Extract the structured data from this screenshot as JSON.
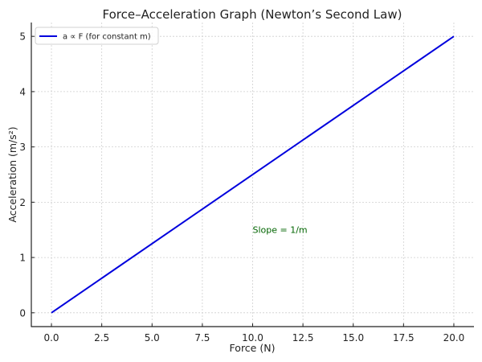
{
  "chart_data": {
    "type": "line",
    "title": "Force–Acceleration Graph (Newton’s Second Law)",
    "xlabel": "Force (N)",
    "ylabel": "Acceleration (m/s²)",
    "xlim": [
      -1,
      21
    ],
    "ylim": [
      -0.25,
      5.25
    ],
    "x_ticks": [
      0.0,
      2.5,
      5.0,
      7.5,
      10.0,
      12.5,
      15.0,
      17.5,
      20.0
    ],
    "x_tick_labels": [
      "0.0",
      "2.5",
      "5.0",
      "7.5",
      "10.0",
      "12.5",
      "15.0",
      "17.5",
      "20.0"
    ],
    "y_ticks": [
      0,
      1,
      2,
      3,
      4,
      5
    ],
    "y_tick_labels": [
      "0",
      "1",
      "2",
      "3",
      "4",
      "5"
    ],
    "grid": true,
    "legend_position": "upper left",
    "series": [
      {
        "name": "a ∝ F (for constant m)",
        "color": "#0000dd",
        "x": [
          0,
          20
        ],
        "y": [
          0,
          5
        ]
      }
    ],
    "annotations": [
      {
        "text": "Slope = 1/m",
        "x": 10,
        "y": 1.5,
        "color": "#006400"
      }
    ]
  }
}
